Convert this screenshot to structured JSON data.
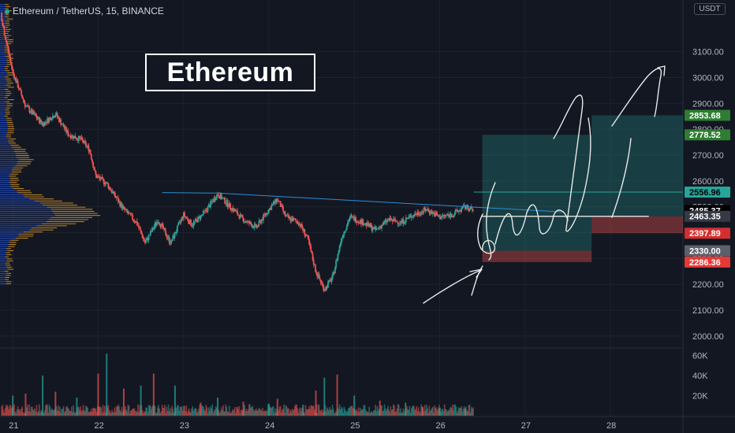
{
  "header": {
    "symbol": "Ethereum / TetherUS, 15, BINANCE",
    "headline": "Ethereum",
    "currency": "USDT"
  },
  "colors": {
    "background": "#131722",
    "up": "#26a69a",
    "down": "#ef5350",
    "profit_zone": "#1e4a33",
    "loss_zone": "#5c1a22",
    "volume_profile_blue": "#2962ff",
    "volume_profile_orange": "#f0a830",
    "trendline": "#2a8fd6",
    "drawing": "#e8e8e8"
  },
  "chart_data": [
    {
      "type": "candlestick",
      "title": "Ethereum / TetherUS, 15, BINANCE",
      "y_axis": {
        "side": "right",
        "ylim": [
          1960,
          3300
        ],
        "ticks": [
          3100,
          3000,
          2900,
          2800,
          2700,
          2600,
          2500,
          2400,
          2300,
          2200,
          2100,
          2000
        ],
        "tick_labels": [
          "3100.00",
          "3000.00",
          "2900.00",
          "2800.00",
          "2700.00",
          "2600.00",
          "2500.00",
          "2400.00",
          "2300.00",
          "2200.00",
          "2100.00",
          "2000.00"
        ]
      },
      "x_axis": {
        "ticks": [
          21,
          22,
          23,
          24,
          25,
          26,
          27,
          28
        ],
        "tick_labels": [
          "21",
          "22",
          "23",
          "24",
          "25",
          "26",
          "27",
          "28"
        ],
        "xlim": [
          20.85,
          28.85
        ]
      },
      "price_path": [
        [
          20.85,
          3250
        ],
        [
          21.0,
          3020
        ],
        [
          21.15,
          2890
        ],
        [
          21.35,
          2820
        ],
        [
          21.5,
          2860
        ],
        [
          21.65,
          2780
        ],
        [
          21.8,
          2760
        ],
        [
          21.9,
          2720
        ],
        [
          21.97,
          2620
        ],
        [
          22.1,
          2590
        ],
        [
          22.3,
          2490
        ],
        [
          22.45,
          2440
        ],
        [
          22.55,
          2360
        ],
        [
          22.7,
          2450
        ],
        [
          22.85,
          2360
        ],
        [
          23.0,
          2470
        ],
        [
          23.1,
          2430
        ],
        [
          23.25,
          2480
        ],
        [
          23.4,
          2550
        ],
        [
          23.55,
          2500
        ],
        [
          23.7,
          2450
        ],
        [
          23.85,
          2420
        ],
        [
          24.0,
          2490
        ],
        [
          24.1,
          2530
        ],
        [
          24.2,
          2460
        ],
        [
          24.35,
          2440
        ],
        [
          24.45,
          2380
        ],
        [
          24.55,
          2250
        ],
        [
          24.65,
          2180
        ],
        [
          24.75,
          2230
        ],
        [
          24.85,
          2380
        ],
        [
          24.95,
          2460
        ],
        [
          25.1,
          2440
        ],
        [
          25.25,
          2410
        ],
        [
          25.4,
          2450
        ],
        [
          25.55,
          2440
        ],
        [
          25.7,
          2470
        ],
        [
          25.85,
          2490
        ],
        [
          26.0,
          2460
        ],
        [
          26.15,
          2470
        ],
        [
          26.3,
          2500
        ],
        [
          26.4,
          2485
        ]
      ],
      "trendline": {
        "from": [
          23.4,
          2553
        ],
        "to": [
          26.4,
          2500
        ],
        "extends_to": [
          27.45,
          2480
        ]
      },
      "horizontal_line": {
        "from": [
          26.4,
          2556.96
        ],
        "to": [
          28.85,
          2556.96
        ]
      },
      "white_line": {
        "from": [
          26.5,
          2463.35
        ],
        "to": [
          28.45,
          2463.35
        ]
      },
      "positions": [
        {
          "side": "long",
          "x_from": 26.5,
          "x_to": 27.78,
          "entry": 2330.0,
          "target": 2778.52,
          "stop": 2286.36
        },
        {
          "side": "long",
          "x_from": 27.78,
          "x_to": 28.85,
          "entry": 2463.35,
          "target": 2853.68,
          "stop": 2397.89
        }
      ],
      "price_labels": [
        {
          "value": 2853.68,
          "text": "2853.68",
          "bg": "#2e7d32",
          "color": "#ffffff"
        },
        {
          "value": 2778.52,
          "text": "2778.52",
          "bg": "#2e7d32",
          "color": "#ffffff"
        },
        {
          "value": 2556.96,
          "text": "2556.96",
          "bg": "#26a69a",
          "color": "#000000"
        },
        {
          "value": 2485.37,
          "text": "2485.37",
          "bg": "#000000",
          "color": "#ffffff"
        },
        {
          "value": 2463.35,
          "text": "2463.35",
          "bg": "#363a45",
          "color": "#ffffff"
        },
        {
          "value": 2397.89,
          "text": "2397.89",
          "bg": "#d32f2f",
          "color": "#ffffff"
        },
        {
          "value": 2330.0,
          "text": "2330.00",
          "bg": "#5d606b",
          "color": "#ffffff"
        },
        {
          "value": 2286.36,
          "text": "2286.36",
          "bg": "#e53935",
          "color": "#ffffff"
        }
      ]
    },
    {
      "type": "bar",
      "title": "Volume",
      "y_axis": {
        "ylim": [
          0,
          66000
        ],
        "ticks": [
          60000,
          40000,
          20000
        ],
        "tick_labels": [
          "60K",
          "40K",
          "20K"
        ]
      },
      "note_values": "volume heights shown in the lower pane",
      "x": [
        21.0,
        21.15,
        21.35,
        21.5,
        21.75,
        22.0,
        22.1,
        22.3,
        22.5,
        22.65,
        22.9,
        23.2,
        23.4,
        23.7,
        24.0,
        24.1,
        24.4,
        24.55,
        24.65,
        24.8,
        25.0,
        25.3,
        25.6,
        25.8,
        26.0,
        26.3
      ],
      "values": [
        20000,
        22000,
        40000,
        24000,
        18000,
        42000,
        62000,
        27000,
        30000,
        42000,
        30000,
        13000,
        18000,
        14000,
        12000,
        17000,
        11000,
        25000,
        38000,
        41000,
        20000,
        15000,
        13000,
        9000,
        8000,
        7000
      ]
    }
  ]
}
